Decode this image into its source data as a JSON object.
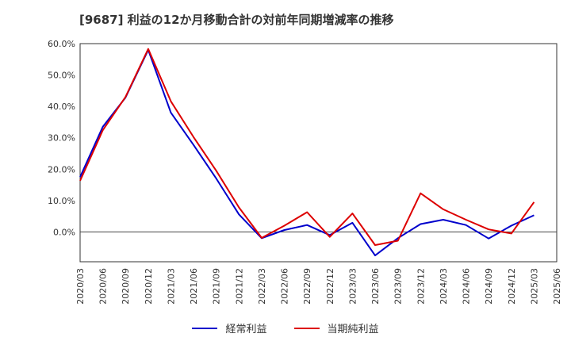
{
  "chart_data": {
    "type": "line",
    "title": "[9687]  利益の12か月移動合計の対前年同期増減率の推移",
    "xlabel": "",
    "ylabel": "",
    "ylim": [
      -9.5,
      60
    ],
    "yticks": [
      0,
      10,
      20,
      30,
      40,
      50,
      60
    ],
    "ytick_labels": [
      "0.0%",
      "10.0%",
      "20.0%",
      "30.0%",
      "40.0%",
      "50.0%",
      "60.0%"
    ],
    "categories": [
      "2020/03",
      "2020/06",
      "2020/09",
      "2020/12",
      "2021/03",
      "2021/06",
      "2021/09",
      "2021/12",
      "2022/03",
      "2022/06",
      "2022/09",
      "2022/12",
      "2023/03",
      "2023/06",
      "2023/09",
      "2023/12",
      "2024/03",
      "2024/06",
      "2024/09",
      "2024/12",
      "2025/03",
      "2025/06"
    ],
    "grid": true,
    "legend_position": "bottom",
    "series": [
      {
        "name": "経常利益",
        "color": "#0000cc",
        "values": [
          17.5,
          33.5,
          42.8,
          58.0,
          38.0,
          27.7,
          17.0,
          5.6,
          -2.0,
          0.6,
          2.2,
          -1.0,
          2.9,
          -7.5,
          -2.0,
          2.5,
          3.9,
          2.2,
          -2.1,
          2.0,
          5.3,
          null
        ]
      },
      {
        "name": "当期純利益",
        "color": "#dd0000",
        "values": [
          16.3,
          32.4,
          43.0,
          58.3,
          41.6,
          30.2,
          19.5,
          7.8,
          -1.9,
          2.0,
          6.3,
          -1.6,
          5.9,
          -4.2,
          -2.8,
          12.3,
          7.2,
          3.9,
          0.8,
          -0.5,
          9.5,
          null
        ]
      }
    ]
  }
}
